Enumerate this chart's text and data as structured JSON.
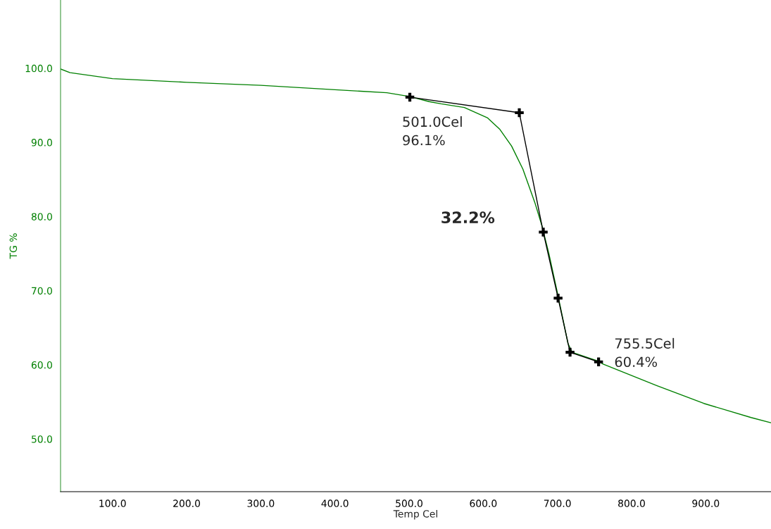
{
  "chart_data": {
    "type": "line",
    "xlabel": "Temp Cel",
    "ylabel": "TG %",
    "xlim": [
      30,
      988
    ],
    "ylim": [
      42.9,
      109.2
    ],
    "xticks": [
      {
        "value": 100,
        "label": "100.0"
      },
      {
        "value": 200,
        "label": "200.0"
      },
      {
        "value": 300,
        "label": "300.0"
      },
      {
        "value": 400,
        "label": "400.0"
      },
      {
        "value": 500,
        "label": "500.0"
      },
      {
        "value": 600,
        "label": "600.0"
      },
      {
        "value": 700,
        "label": "700.0"
      },
      {
        "value": 800,
        "label": "800.0"
      },
      {
        "value": 900,
        "label": "900.0"
      }
    ],
    "yticks": [
      {
        "value": 50,
        "label": "50.0"
      },
      {
        "value": 60,
        "label": "60.0"
      },
      {
        "value": 70,
        "label": "70.0"
      },
      {
        "value": 80,
        "label": "80.0"
      },
      {
        "value": 90,
        "label": "90.0"
      },
      {
        "value": 100,
        "label": "100.0"
      }
    ],
    "grid": false,
    "legend": false,
    "series": [
      {
        "color": "#008000",
        "marker": "none",
        "line_style": "solid",
        "x": [
          30,
          42.7,
          100,
          200,
          300,
          400,
          470,
          500,
          527,
          543.2,
          574.5,
          605.9,
          622.0,
          638.2,
          653.4,
          669.5,
          679.0,
          688.5,
          700.9,
          714.2,
          719.8,
          755.0,
          761.6,
          833.8,
          897.4,
          961.1,
          987.7
        ],
        "values": [
          99.9,
          99.4,
          98.6,
          98.1,
          97.7,
          97.1,
          96.7,
          96.2,
          95.5,
          95.2,
          94.7,
          93.3,
          91.8,
          89.5,
          86.4,
          81.9,
          78.8,
          75.0,
          69.3,
          62.9,
          61.7,
          60.5,
          60.1,
          57.2,
          54.8,
          52.9,
          52.2
        ]
      },
      {
        "color": "#000000",
        "marker": "cross",
        "line_style": "solid",
        "x": [
          501.0,
          648.6,
          680.9,
          700.9,
          717.0,
          755.5
        ],
        "values": [
          96.1,
          94.0,
          77.9,
          69.0,
          61.7,
          60.4
        ]
      }
    ],
    "annotations": [
      {
        "text": "501.0Cel\n96.1%",
        "x": 501.0,
        "y": 96.1
      },
      {
        "text": "755.5Cel\n60.4%",
        "x": 755.5,
        "y": 60.4
      },
      "32.2%"
    ]
  }
}
